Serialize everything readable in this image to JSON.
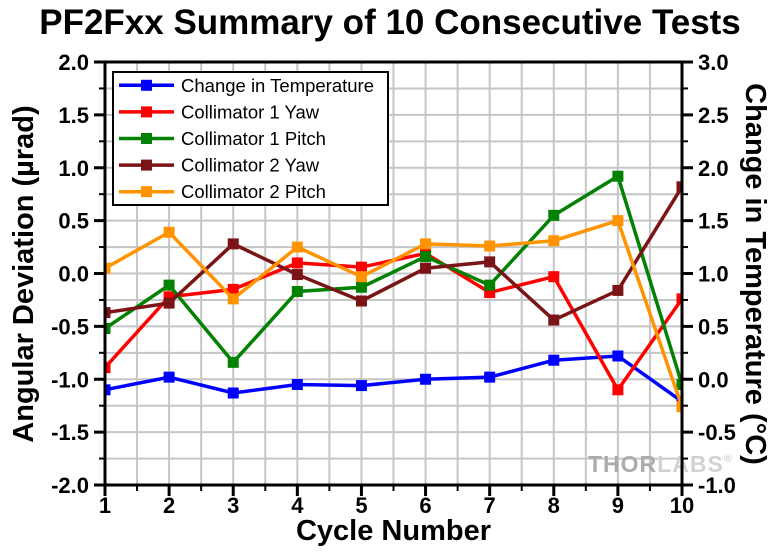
{
  "watermark": {
    "part1": "THOR",
    "part2": "LABS",
    "color1": "#ababab",
    "color2": "#d2d2d2"
  },
  "chart_data": {
    "type": "line",
    "title": "PF2Fxx Summary of 10 Consecutive Tests",
    "xlabel": "Cycle Number",
    "ylabel_left": "Angular Deviation (µrad)",
    "ylabel_right": "Change in Temperature (°C)",
    "x": [
      1,
      2,
      3,
      4,
      5,
      6,
      7,
      8,
      9,
      10
    ],
    "xlim": [
      1,
      10
    ],
    "x_major_step": 1,
    "x_minor_step": 0.5,
    "ylim_left": [
      -2.0,
      2.0
    ],
    "ylim_right": [
      -1.0,
      3.0
    ],
    "y_major_step": 0.5,
    "y_minor_step": 0.25,
    "grid": true,
    "grid_color": "#c6c6c6",
    "axis_color": "#000000",
    "legend_position": "top-left",
    "series": [
      {
        "name": "Change in Temperature",
        "axis": "right",
        "color": "#0000ff",
        "marker": "square",
        "values": [
          -0.1,
          0.02,
          -0.13,
          -0.05,
          -0.06,
          0.0,
          0.02,
          0.18,
          0.22,
          -0.21
        ]
      },
      {
        "name": "Collimator 1 Yaw",
        "axis": "left",
        "color": "#ff0000",
        "marker": "square",
        "values": [
          -0.89,
          -0.22,
          -0.15,
          0.1,
          0.06,
          0.19,
          -0.18,
          -0.03,
          -1.1,
          -0.24
        ]
      },
      {
        "name": "Collimator 1 Pitch",
        "axis": "left",
        "color": "#028102",
        "marker": "square",
        "values": [
          -0.52,
          -0.11,
          -0.84,
          -0.17,
          -0.13,
          0.16,
          -0.11,
          0.55,
          0.92,
          -1.05
        ]
      },
      {
        "name": "Collimator 2 Yaw",
        "axis": "left",
        "color": "#7a1416",
        "marker": "square",
        "values": [
          -0.37,
          -0.28,
          0.28,
          -0.01,
          -0.26,
          0.05,
          0.11,
          -0.44,
          -0.16,
          0.82
        ]
      },
      {
        "name": "Collimator 2 Pitch",
        "axis": "left",
        "color": "#ff9300",
        "marker": "square",
        "values": [
          0.05,
          0.39,
          -0.24,
          0.25,
          -0.03,
          0.28,
          0.26,
          0.31,
          0.5,
          -1.26
        ]
      }
    ]
  }
}
